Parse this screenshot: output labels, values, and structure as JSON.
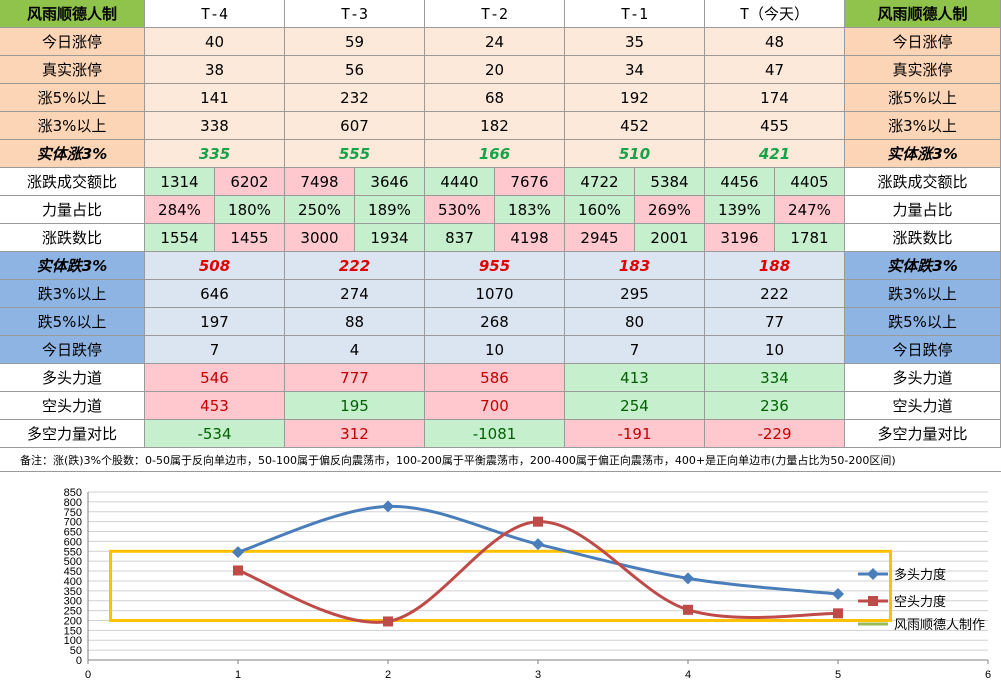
{
  "table": {
    "brand": "风雨顺德人制",
    "days": [
      "T-4",
      "T-3",
      "T-2",
      "T-1",
      "T（今天）"
    ],
    "up_rows": [
      {
        "label": "今日涨停",
        "values": [
          "40",
          "59",
          "24",
          "35",
          "48"
        ]
      },
      {
        "label": "真实涨停",
        "values": [
          "38",
          "56",
          "20",
          "34",
          "47"
        ]
      },
      {
        "label": "涨5%以上",
        "values": [
          "141",
          "232",
          "68",
          "192",
          "174"
        ]
      },
      {
        "label": "涨3%以上",
        "values": [
          "338",
          "607",
          "182",
          "452",
          "455"
        ]
      }
    ],
    "solid_up": {
      "label": "实体涨3%",
      "values": [
        "335",
        "555",
        "166",
        "510",
        "421"
      ]
    },
    "pair_rows": [
      {
        "label": "涨跌成交额比",
        "values": [
          [
            "1314",
            "6202"
          ],
          [
            "7498",
            "3646"
          ],
          [
            "4440",
            "7676"
          ],
          [
            "4722",
            "5384"
          ],
          [
            "4456",
            "4405"
          ]
        ]
      },
      {
        "label": "力量占比",
        "values": [
          [
            "284%",
            "180%"
          ],
          [
            "250%",
            "189%"
          ],
          [
            "530%",
            "183%"
          ],
          [
            "160%",
            "269%"
          ],
          [
            "139%",
            "247%"
          ]
        ]
      },
      {
        "label": "涨跌数比",
        "values": [
          [
            "1554",
            "1455"
          ],
          [
            "3000",
            "1934"
          ],
          [
            "837",
            "4198"
          ],
          [
            "2945",
            "2001"
          ],
          [
            "3196",
            "1781"
          ]
        ]
      }
    ],
    "solid_down": {
      "label": "实体跌3%",
      "values": [
        "508",
        "222",
        "955",
        "183",
        "188"
      ]
    },
    "down_rows": [
      {
        "label": "跌3%以上",
        "values": [
          "646",
          "274",
          "1070",
          "295",
          "222"
        ]
      },
      {
        "label": "跌5%以上",
        "values": [
          "197",
          "88",
          "268",
          "80",
          "77"
        ]
      },
      {
        "label": "今日跌停",
        "values": [
          "7",
          "4",
          "10",
          "7",
          "10"
        ]
      }
    ],
    "force_rows": [
      {
        "label": "多头力道",
        "values": [
          "546",
          "777",
          "586",
          "413",
          "334"
        ]
      },
      {
        "label": "空头力道",
        "values": [
          "453",
          "195",
          "700",
          "254",
          "236"
        ]
      },
      {
        "label": "多空力量对比",
        "values": [
          "-534",
          "312",
          "-1081",
          "-191",
          "-229"
        ]
      }
    ],
    "note": "备注：涨(跌)3%个股数：0-50属于反向单边市，50-100属于偏反向震荡市，100-200属于平衡震荡市，200-400属于偏正向震荡市，400+是正向单边市(力量占比为50-200区间)"
  },
  "chart_data": {
    "type": "line",
    "x": [
      1,
      2,
      3,
      4,
      5
    ],
    "series": [
      {
        "name": "多头力度",
        "values": [
          546,
          777,
          586,
          413,
          334
        ],
        "color": "#4a7ebb",
        "marker": "diamond"
      },
      {
        "name": "空头力度",
        "values": [
          453,
          195,
          700,
          254,
          236
        ],
        "color": "#be4b48",
        "marker": "square"
      }
    ],
    "legend_extra": {
      "name": "风雨顺德人制作",
      "color": "#98b954"
    },
    "xlim": [
      0,
      6
    ],
    "ylim": [
      0,
      850
    ],
    "xticks": [
      "0",
      "1",
      "2",
      "3",
      "4",
      "5",
      "6"
    ],
    "yticks": [
      "0",
      "50",
      "100",
      "150",
      "200",
      "250",
      "300",
      "350",
      "400",
      "450",
      "500",
      "550",
      "600",
      "650",
      "700",
      "750",
      "800",
      "850"
    ],
    "highlight_box": {
      "y_range": [
        200,
        550
      ],
      "x_range": [
        0.15,
        5.35
      ],
      "color": "#ffc000"
    },
    "grid": "horizontal",
    "legend_position": "right"
  }
}
